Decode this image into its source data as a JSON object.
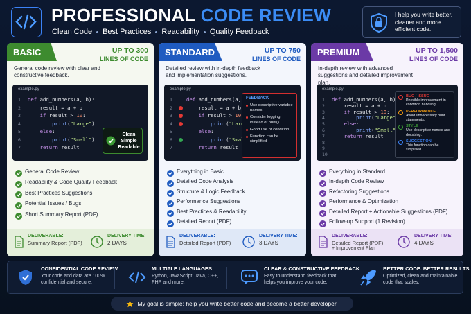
{
  "header": {
    "title": "PROFESSIONAL",
    "title_highlight": "CODE REVIEW",
    "tags": [
      "Clean Code",
      "Best Practices",
      "Readability",
      "Quality Feedback"
    ],
    "badge": "I help you write better, cleaner and more efficient code."
  },
  "plans": [
    {
      "name": "BASIC",
      "price": "UP TO 300",
      "price_unit": "LINES OF CODE",
      "description": "General code review with clear and constructive feedback.",
      "code": {
        "file": "example.py",
        "line_numbers": [
          1,
          2,
          3,
          4,
          5,
          6,
          7
        ],
        "lines": [
          "def add_numbers(a, b):",
          "    result = a + b",
          "    if result > 10:",
          "        print(\"Large\")",
          "    else:",
          "        print(\"Small\")",
          "    return result"
        ],
        "note": "Clean Simple Readable"
      },
      "features": [
        "General Code Review",
        "Readability & Code Quality Feedback",
        "Best Practices Suggestions",
        "Potential Issues / Bugs",
        "Short Summary Report (PDF)"
      ],
      "deliverable_label": "DELIVERABLE:",
      "deliverable": "Summary Report (PDF)",
      "delivery_label": "DELIVERY TIME:",
      "delivery_time": "2 DAYS"
    },
    {
      "name": "STANDARD",
      "price": "UP TO 750",
      "price_unit": "LINES OF CODE",
      "description": "Detailed review with in-depth feedback and implementation suggestions.",
      "code": {
        "file": "example.py",
        "line_numbers": [
          1,
          2,
          3,
          4,
          5,
          6,
          7
        ],
        "lines": [
          "def add_numbers(a, b):",
          "    result = a + b",
          "    if result > 10:",
          "        print(\"Large\")",
          "    else:",
          "        print(\"Small\")",
          "    return result"
        ],
        "feedback": {
          "title": "FEEDBACK",
          "items": [
            "Use descriptive variable names",
            "Consider logging instead of print()",
            "Good use of condition",
            "Function can be simplified"
          ]
        }
      },
      "features": [
        "Everything in Basic",
        "Detailed Code Analysis",
        "Structure & Logic Feedback",
        "Performance Suggestions",
        "Best Practices & Readability",
        "Detailed Report (PDF)"
      ],
      "deliverable_label": "DELIVERABLE:",
      "deliverable": "Detailed Report (PDF)",
      "delivery_label": "DELIVERY TIME:",
      "delivery_time": "3 DAYS"
    },
    {
      "name": "PREMIUM",
      "price": "UP TO 1,500",
      "price_unit": "LINES OF CODE",
      "description": "In-depth review with advanced suggestions and detailed improvement plan.",
      "code": {
        "file": "example.py",
        "line_numbers": [
          1,
          2,
          3,
          4,
          5,
          6,
          7,
          8,
          9,
          10
        ],
        "lines": [
          "def add_numbers(a, b):",
          "    result = a + b",
          "    if result > 10:",
          "        print(\"Large\")",
          "    else:",
          "        print(\"Small\")",
          "    return result"
        ],
        "annotations": [
          {
            "label": "BUG / ISSUE",
            "text": "Possible improvement in condition handling."
          },
          {
            "label": "PERFORMANCE",
            "text": "Avoid unnecessary print statements."
          },
          {
            "label": "STYLE",
            "text": "Use descriptive names and docstring."
          },
          {
            "label": "SUGGESTION",
            "text": "This function can be simplified."
          }
        ]
      },
      "features": [
        "Everything in Standard",
        "In-depth Code Review",
        "Refactoring Suggestions",
        "Performance & Optimization",
        "Detailed Report + Actionable Suggestions (PDF)",
        "Follow-up Support (1 Revision)"
      ],
      "deliverable_label": "DELIVERABLE:",
      "deliverable": "Detailed Report (PDF)",
      "deliverable_extra": "+ Improvement Plan",
      "delivery_label": "DELIVERY TIME:",
      "delivery_time": "4 DAYS"
    }
  ],
  "benefits": [
    {
      "title": "CONFIDENTIAL CODE REVIEW",
      "text": "Your code and data are 100% confidential and secure."
    },
    {
      "title": "MULTIPLE LANGUAGES",
      "text": "Python, JavaScript, Java, C++, PHP and more."
    },
    {
      "title": "CLEAR & CONSTRUCTIVE FEEDBACK",
      "text": "Easy to understand feedback that helps you improve your code."
    },
    {
      "title": "BETTER CODE. BETTER RESULTS.",
      "text": "Optimized, clean and maintainable code that scales."
    }
  ],
  "footer": "My goal is simple: help you write better code and become a better developer."
}
